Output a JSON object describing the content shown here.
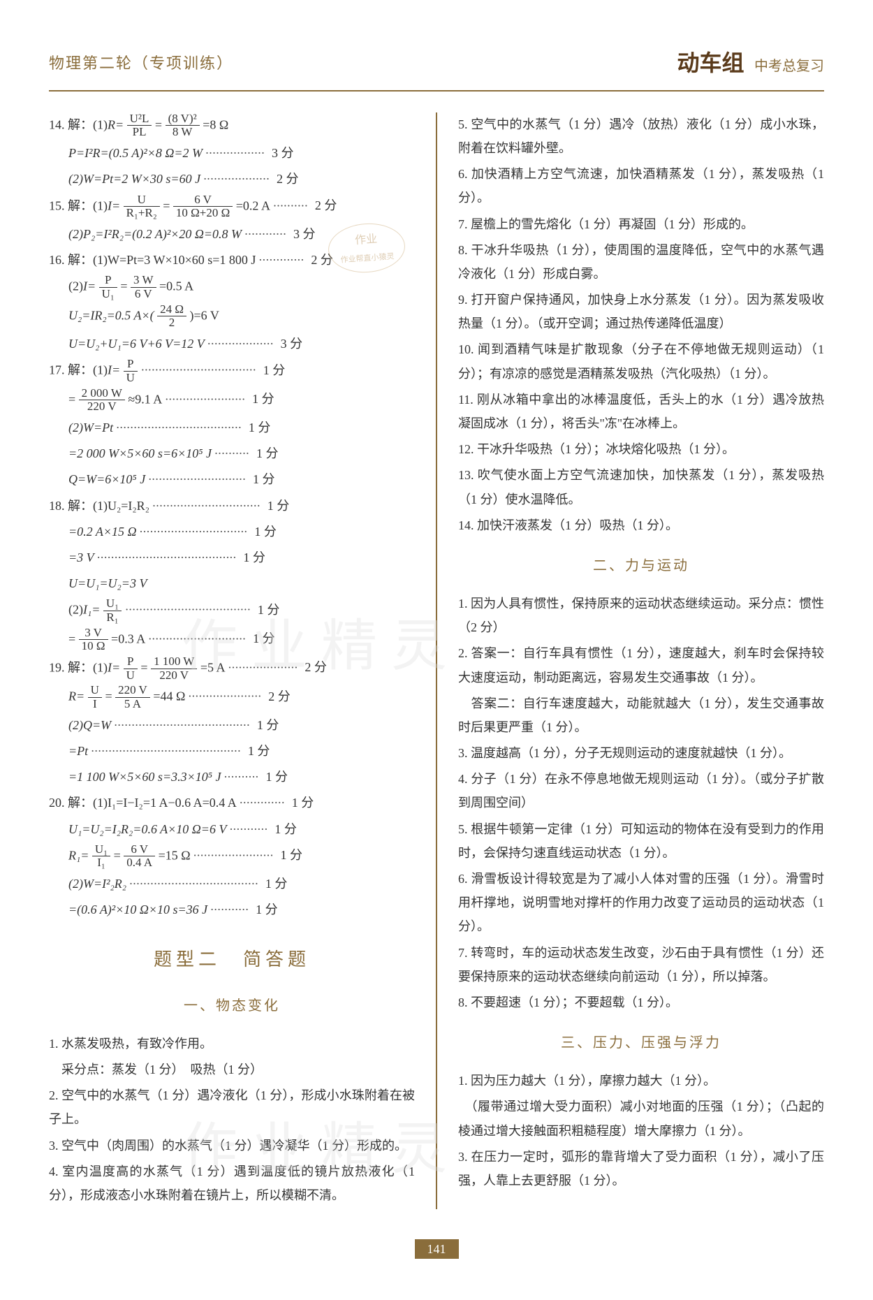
{
  "header": {
    "left": "物理第二轮（专项训练）",
    "brand": "动车组",
    "right": "中考总复习"
  },
  "pageNumber": "141",
  "stamp": {
    "l1": "作业",
    "l2": "作业帮直小猿灵"
  },
  "watermark": "作业精灵",
  "left": {
    "p14": {
      "l1a": "14. 解：(1)",
      "l1b": "R=",
      "l1num": "U²L",
      "l1den": "PL",
      "l1c": "=",
      "l1num2": "(8 V)²",
      "l1den2": "8 W",
      "l1d": "=8 Ω",
      "l2": "P=I²R=(0.5 A)²×8 Ω=2 W",
      "l2pts": " 3 分",
      "l3": "(2)W=Pt=2 W×30 s=60 J",
      "l3pts": " 2 分"
    },
    "p15": {
      "l1a": "15. 解：(1)",
      "l1b": "I=",
      "l1num": "U",
      "l1den": "R₁+R₂",
      "l1c": "=",
      "l1num2": "6 V",
      "l1den2": "10 Ω+20 Ω",
      "l1d": "=0.2 A",
      "l1pts": " 2 分",
      "l2": "(2)P₂=I²R₂=(0.2 A)²×20 Ω=0.8 W",
      "l2pts": " 3 分"
    },
    "p16": {
      "l1": "16. 解：(1)W=Pt=3 W×10×60 s=1 800 J",
      "l1pts": " 2 分",
      "l2a": "(2)",
      "l2b": "I=",
      "l2num": "P",
      "l2den": "U₁",
      "l2c": "=",
      "l2num2": "3 W",
      "l2den2": "6 V",
      "l2d": "=0.5 A",
      "l3a": "U₂=IR₂=0.5 A×(",
      "l3num": "24 Ω",
      "l3den": "2",
      "l3b": ")=6 V",
      "l4": "U=U₂+U₁=6 V+6 V=12 V",
      "l4pts": " 3 分"
    },
    "p17": {
      "l1a": "17. 解：(1)",
      "l1b": "I=",
      "l1num": "P",
      "l1den": "U",
      "l1pts": " 1 分",
      "l2a": "=",
      "l2num": "2 000 W",
      "l2den": "220 V",
      "l2b": "≈9.1 A",
      "l2pts": " 1 分",
      "l3": "(2)W=Pt",
      "l3pts": " 1 分",
      "l4": "=2 000 W×5×60 s=6×10⁵ J",
      "l4pts": " 1 分",
      "l5": "Q=W=6×10⁵ J",
      "l5pts": " 1 分"
    },
    "p18": {
      "l1": "18. 解：(1)U₂=I₂R₂",
      "l1pts": " 1 分",
      "l2": "=0.2 A×15 Ω",
      "l2pts": " 1 分",
      "l3": "=3 V",
      "l3pts": " 1 分",
      "l4": "U=U₁=U₂=3 V",
      "l5a": "(2)",
      "l5b": "I₁=",
      "l5num": "U₁",
      "l5den": "R₁",
      "l5pts": " 1 分",
      "l6a": "=",
      "l6num": "3 V",
      "l6den": "10 Ω",
      "l6b": "=0.3 A",
      "l6pts": " 1 分"
    },
    "p19": {
      "l1a": "19. 解：(1)",
      "l1b": "I=",
      "l1num": "P",
      "l1den": "U",
      "l1c": "=",
      "l1num2": "1 100 W",
      "l1den2": "220 V",
      "l1d": "=5 A",
      "l1pts": " 2 分",
      "l2a": "R=",
      "l2num": "U",
      "l2den": "I",
      "l2b": "=",
      "l2num2": "220 V",
      "l2den2": "5 A",
      "l2c": "=44 Ω",
      "l2pts": " 2 分",
      "l3": "(2)Q=W",
      "l3pts": " 1 分",
      "l4": "=Pt",
      "l4pts": " 1 分",
      "l5": "=1 100 W×5×60 s=3.3×10⁵ J",
      "l5pts": " 1 分"
    },
    "p20": {
      "l1": "20. 解：(1)I₁=I−I₂=1 A−0.6 A=0.4 A",
      "l1pts": " 1 分",
      "l2": "U₁=U₂=I₂R₂=0.6 A×10 Ω=6 V",
      "l2pts": " 1 分",
      "l3a": "R₁=",
      "l3num": "U₁",
      "l3den": "I₁",
      "l3b": "=",
      "l3num2": "6 V",
      "l3den2": "0.4 A",
      "l3c": "=15 Ω",
      "l3pts": " 1 分",
      "l4": "(2)W=I²₂R₂",
      "l4pts": " 1 分",
      "l5": "=(0.6 A)²×10 Ω×10 s=36 J",
      "l5pts": " 1 分"
    },
    "title2": "题型二　简答题",
    "sub1": "一、物态变化",
    "s1": [
      "1. 水蒸发吸热，有致冷作用。",
      "　采分点：蒸发（1 分）　吸热（1 分）",
      "2. 空气中的水蒸气（1 分）遇冷液化（1 分），形成小水珠附着在被子上。",
      "3. 空气中（肉周围）的水蒸气（1 分）遇冷凝华（1 分）形成的。",
      "4. 室内温度高的水蒸气（1 分）遇到温度低的镜片放热液化（1 分），形成液态小水珠附着在镜片上，所以模糊不清。"
    ]
  },
  "right": {
    "s1b": [
      "5. 空气中的水蒸气（1 分）遇冷（放热）液化（1 分）成小水珠，附着在饮料罐外壁。",
      "6. 加快酒精上方空气流速，加快酒精蒸发（1 分），蒸发吸热（1 分）。",
      "7. 屋檐上的雪先熔化（1 分）再凝固（1 分）形成的。",
      "8. 干冰升华吸热（1 分），使周围的温度降低，空气中的水蒸气遇冷液化（1 分）形成白雾。",
      "9. 打开窗户保持通风，加快身上水分蒸发（1 分）。因为蒸发吸收热量（1 分）。（或开空调；通过热传递降低温度）",
      "10. 闻到酒精气味是扩散现象（分子在不停地做无规则运动）（1 分）；有凉凉的感觉是酒精蒸发吸热（汽化吸热）（1 分）。",
      "11. 刚从冰箱中拿出的冰棒温度低，舌头上的水（1 分）遇冷放热凝固成冰（1 分），将舌头\"冻\"在冰棒上。",
      "12. 干冰升华吸热（1 分）；冰块熔化吸热（1 分）。",
      "13. 吹气使水面上方空气流速加快，加快蒸发（1 分），蒸发吸热（1 分）使水温降低。",
      "14. 加快汗液蒸发（1 分）吸热（1 分）。"
    ],
    "sub2": "二、力与运动",
    "s2": [
      "1. 因为人具有惯性，保持原来的运动状态继续运动。采分点：惯性（2 分）",
      "2. 答案一：自行车具有惯性（1 分），速度越大，刹车时会保持较大速度运动，制动距离远，容易发生交通事故（1 分）。",
      "　答案二：自行车速度越大，动能就越大（1 分），发生交通事故时后果更严重（1 分）。",
      "3. 温度越高（1 分），分子无规则运动的速度就越快（1 分）。",
      "4. 分子（1 分）在永不停息地做无规则运动（1 分）。（或分子扩散到周围空间）",
      "5. 根据牛顿第一定律（1 分）可知运动的物体在没有受到力的作用时，会保持匀速直线运动状态（1 分）。",
      "6. 滑雪板设计得较宽是为了减小人体对雪的压强（1 分）。滑雪时用杆撑地，说明雪地对撑杆的作用力改变了运动员的运动状态（1 分）。",
      "7. 转弯时，车的运动状态发生改变，沙石由于具有惯性（1 分）还要保持原来的运动状态继续向前运动（1 分），所以掉落。",
      "8. 不要超速（1 分）；不要超载（1 分）。"
    ],
    "sub3": "三、压力、压强与浮力",
    "s3": [
      "1. 因为压力越大（1 分），摩擦力越大（1 分）。",
      "　（履带通过增大受力面积）减小对地面的压强（1 分）；（凸起的棱通过增大接触面积粗糙程度）增大摩擦力（1 分）。",
      "3. 在压力一定时，弧形的靠背增大了受力面积（1 分），减小了压强，人靠上去更舒服（1 分）。"
    ]
  }
}
